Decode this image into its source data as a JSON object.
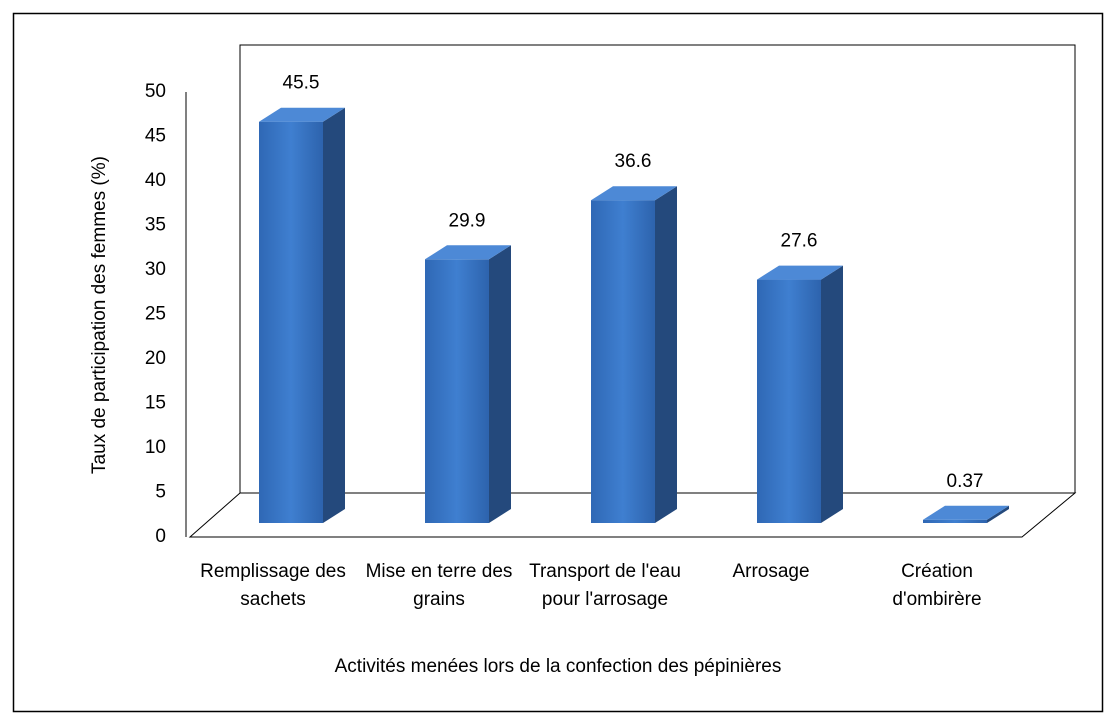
{
  "chart_data": {
    "type": "bar3d",
    "categories": [
      "Remplissage des sachets",
      "Mise en terre des grains",
      "Transport de l'eau pour l'arrosage",
      "Arrosage",
      "Création d'ombirère"
    ],
    "values": [
      45.5,
      29.9,
      36.6,
      27.6,
      0.37
    ],
    "color": "#3a78c9",
    "ylim": [
      0,
      50
    ],
    "yticks": [
      0,
      5,
      10,
      15,
      20,
      25,
      30,
      35,
      40,
      45,
      50
    ],
    "grid": false,
    "xlabel": "Activités menées lors de la confection des pépinières",
    "ylabel": "Taux de participation des femmes (%)"
  }
}
